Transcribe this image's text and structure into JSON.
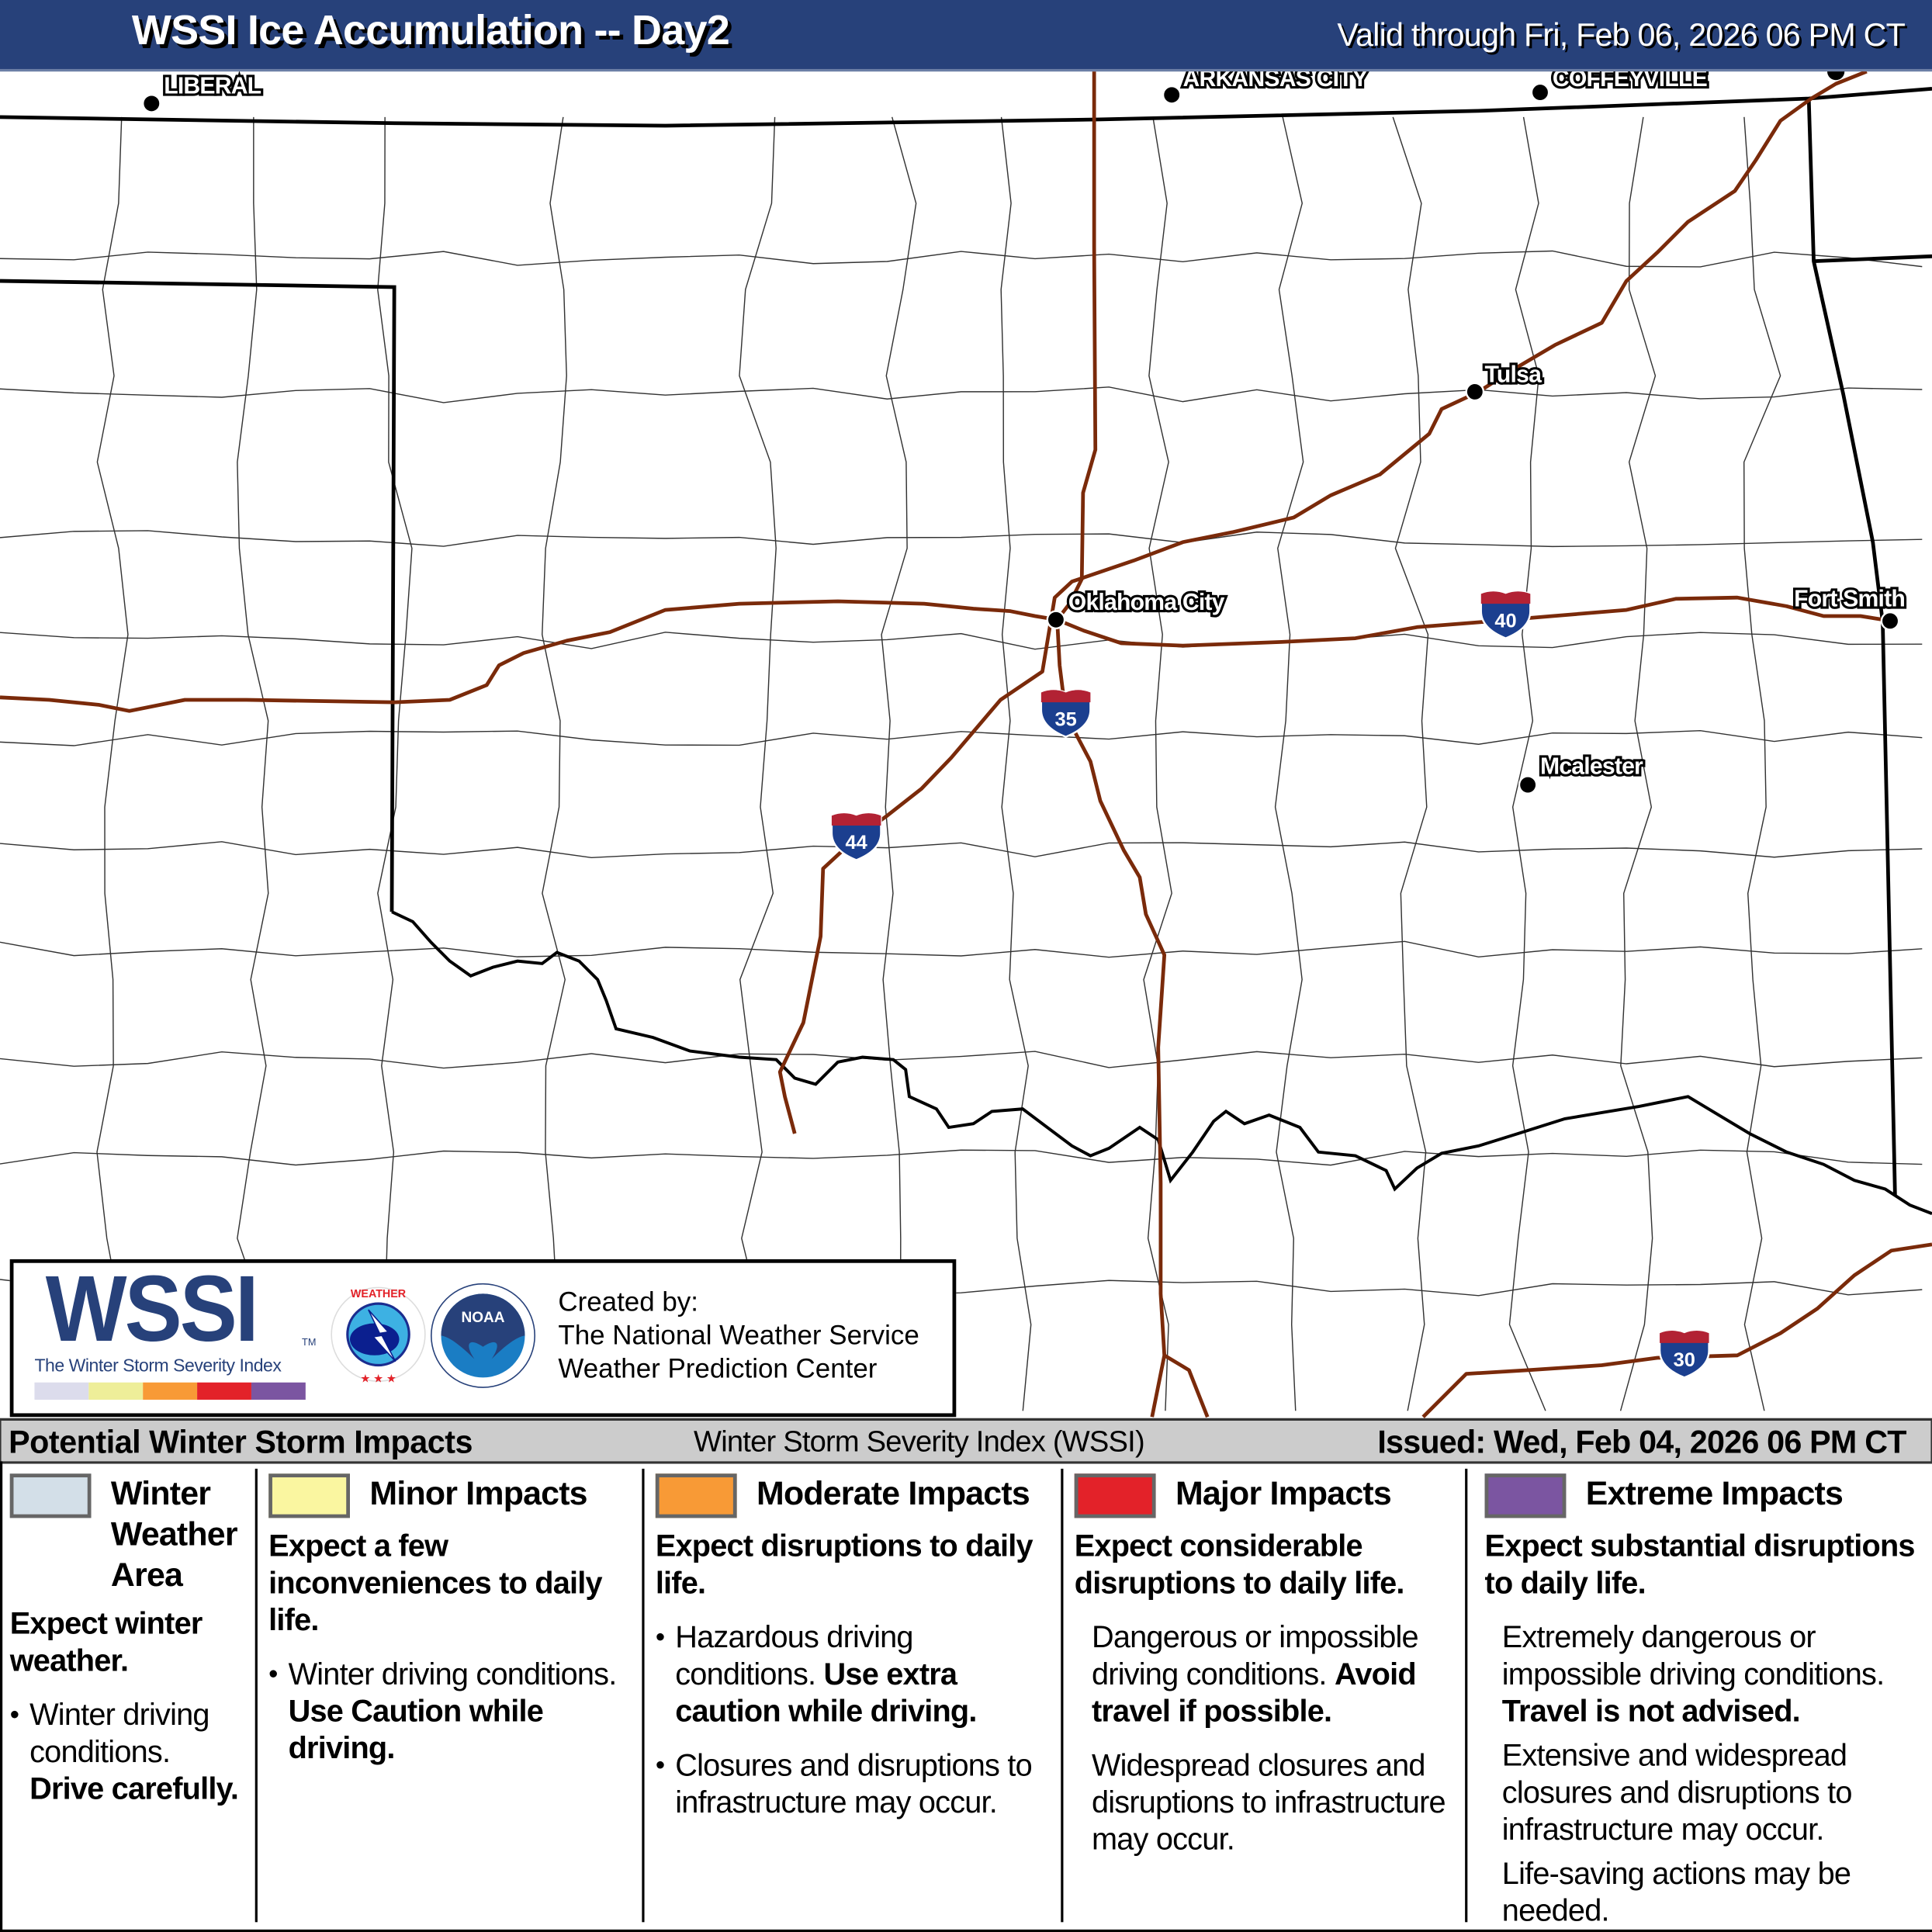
{
  "header": {
    "title": "WSSI Ice Accumulation -- Day2",
    "valid": "Valid through Fri, Feb 06, 2026 06 PM CT",
    "background_color": "#27417a"
  },
  "map": {
    "cities": [
      {
        "name": "LIBERAL"
      },
      {
        "name": "ARKANSAS CITY"
      },
      {
        "name": "COFFEYVILLE"
      },
      {
        "name": "Tulsa"
      },
      {
        "name": "Oklahoma City"
      },
      {
        "name": "Fort Smith"
      },
      {
        "name": "Mcalester"
      }
    ],
    "interstates": [
      "35",
      "44",
      "40",
      "30"
    ],
    "road_color": "#7a2a0a",
    "shield_blue": "#1b3f8f",
    "shield_red": "#b22234"
  },
  "logo": {
    "wssi": "WSSI",
    "tm": "TM",
    "subtitle": "The Winter Storm Severity Index",
    "bar_colors": [
      "#dcdcec",
      "#eeee99",
      "#f89a36",
      "#e32229",
      "#7b55a1"
    ],
    "nws_logo_text": "NATIONAL WEATHER SERVICE",
    "noaa_logo_text": "NOAA",
    "created_by": "Created by:",
    "org1": "The National Weather Service",
    "org2": "Weather Prediction Center"
  },
  "impacts_bar": {
    "left": "Potential Winter Storm Impacts",
    "middle": "Winter Storm Severity Index (WSSI)",
    "issued": "Issued: Wed, Feb 04, 2026 06 PM CT"
  },
  "legend": [
    {
      "title_lines": [
        "Winter",
        "Weather",
        "Area"
      ],
      "color": "#d3dfe8",
      "lead": "Expect winter weather.",
      "b1": "Winter driving conditions.",
      "b1_bold": "Drive carefully."
    },
    {
      "title": "Minor Impacts",
      "color": "#faf6a0",
      "lead": "Expect a few inconveniences to daily life.",
      "b1": "Winter driving conditions.",
      "b1_bold": "Use Caution while driving."
    },
    {
      "title": "Moderate Impacts",
      "color": "#f89a36",
      "lead": "Expect disruptions to daily life.",
      "b1": "Hazardous driving conditions.",
      "b1_bold": "Use extra caution while driving.",
      "b2": "Closures and disruptions to infrastructure may occur."
    },
    {
      "title": "Major Impacts",
      "color": "#e32229",
      "lead": "Expect considerable disruptions to daily life.",
      "b1": "Dangerous or impossible driving conditions.",
      "b1_bold": "Avoid travel if possible.",
      "b2": "Widespread closures and disruptions to infrastructure may occur."
    },
    {
      "title": "Extreme Impacts",
      "color": "#7b55a1",
      "lead": "Expect substantial disruptions to daily life.",
      "b1": "Extremely dangerous or impossible driving conditions.",
      "b1_bold": "Travel is not advised.",
      "b2": "Extensive and widespread closures and disruptions to infrastructure may occur.",
      "b3": "Life-saving actions may be needed."
    }
  ]
}
